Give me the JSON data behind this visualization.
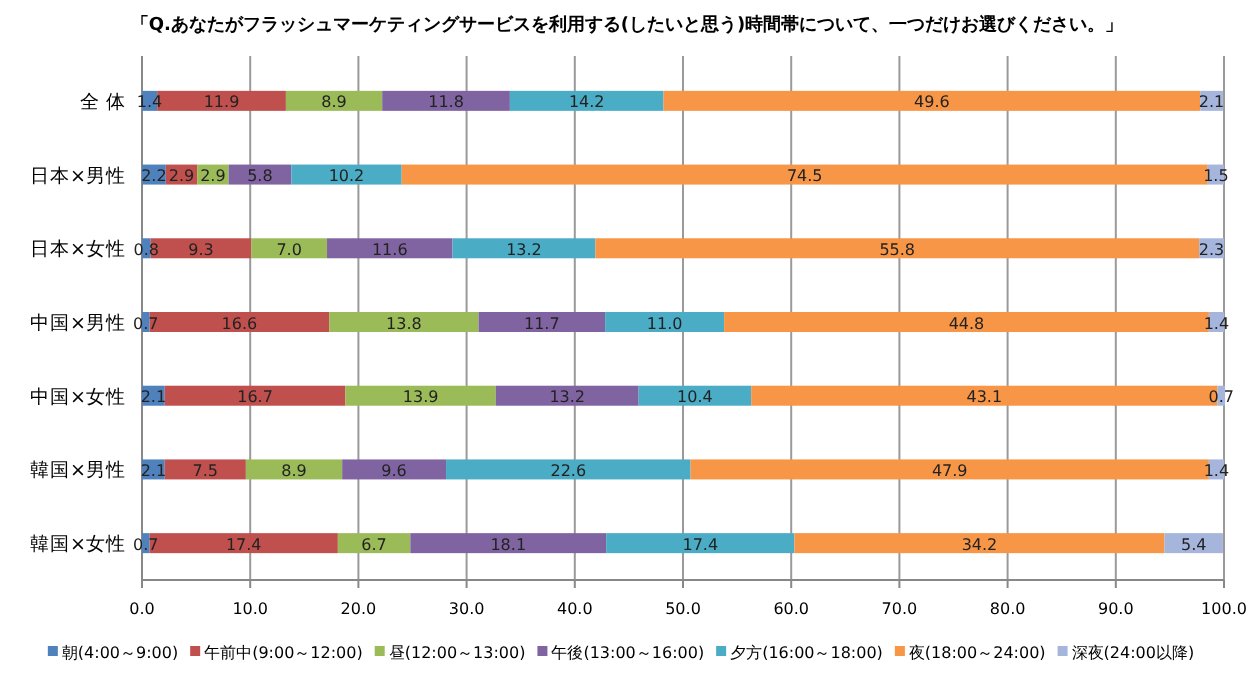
{
  "chart_data": {
    "type": "bar",
    "orientation": "horizontal",
    "stacked": true,
    "title": "「Q.あなたがフラッシュマーケティングサービスを利用する(したいと思う)時間帯について、一つだけお選びください。」",
    "categories": [
      "全 体",
      "日本×男性",
      "日本×女性",
      "中国×男性",
      "中国×女性",
      "韓国×男性",
      "韓国×女性"
    ],
    "series": [
      {
        "name": "朝(4:00～9:00)",
        "color": "#4f81bd",
        "values": [
          1.4,
          2.2,
          0.8,
          0.7,
          2.1,
          2.1,
          0.7
        ],
        "value_labels": [
          "1.4",
          "2.2",
          "0.8",
          "0.7",
          "2.1",
          "2.1",
          "0.7"
        ]
      },
      {
        "name": "午前中(9:00～12:00)",
        "color": "#c0504d",
        "values": [
          11.9,
          2.9,
          9.3,
          16.6,
          16.7,
          7.5,
          17.4
        ],
        "value_labels": [
          "11.9",
          "2.9",
          "9.3",
          "16.6",
          "16.7",
          "7.5",
          "17.4"
        ]
      },
      {
        "name": "昼(12:00～13:00)",
        "color": "#9bbb59",
        "values": [
          8.9,
          2.9,
          7.0,
          13.8,
          13.9,
          8.9,
          6.7
        ],
        "value_labels": [
          "8.9",
          "2.9",
          "7.0",
          "13.8",
          "13.9",
          "8.9",
          "6.7"
        ]
      },
      {
        "name": "午後(13:00～16:00)",
        "color": "#8064a2",
        "values": [
          11.8,
          5.8,
          11.6,
          11.7,
          13.2,
          9.6,
          18.1
        ],
        "value_labels": [
          "11.8",
          "5.8",
          "11.6",
          "11.7",
          "13.2",
          "9.6",
          "18.1"
        ]
      },
      {
        "name": "夕方(16:00～18:00)",
        "color": "#4bacc6",
        "values": [
          14.2,
          10.2,
          13.2,
          11.0,
          10.4,
          22.6,
          17.4
        ],
        "value_labels": [
          "14.2",
          "10.2",
          "13.2",
          "11.0",
          "10.4",
          "22.6",
          "17.4"
        ]
      },
      {
        "name": "夜(18:00～24:00)",
        "color": "#f79646",
        "values": [
          49.6,
          74.5,
          55.8,
          44.8,
          43.1,
          47.9,
          34.2
        ],
        "value_labels": [
          "49.6",
          "74.5",
          "55.8",
          "44.8",
          "43.1",
          "47.9",
          "34.2"
        ]
      },
      {
        "name": "深夜(24:00以降)",
        "color": "#a5b5dc",
        "values": [
          2.1,
          1.5,
          2.3,
          1.4,
          0.7,
          1.4,
          5.4
        ],
        "value_labels": [
          "2.1",
          "1.5",
          "2.3",
          "1.4",
          "0.7",
          "1.4",
          "5.4"
        ]
      }
    ],
    "xlim": [
      0,
      100
    ],
    "xticks": [
      {
        "value": 0,
        "label": "0.0"
      },
      {
        "value": 10,
        "label": "10.0"
      },
      {
        "value": 20,
        "label": "20.0"
      },
      {
        "value": 30,
        "label": "30.0"
      },
      {
        "value": 40,
        "label": "40.0"
      },
      {
        "value": 50,
        "label": "50.0"
      },
      {
        "value": 60,
        "label": "60.0"
      },
      {
        "value": 70,
        "label": "70.0"
      },
      {
        "value": 80,
        "label": "80.0"
      },
      {
        "value": 90,
        "label": "90.0"
      },
      {
        "value": 100,
        "label": "100.0"
      }
    ],
    "grid": "x",
    "legend": "bottom"
  }
}
